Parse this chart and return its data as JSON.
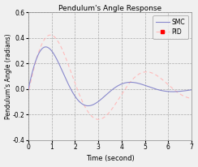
{
  "title": "Pendulum's Angle Response",
  "xlabel": "Time (second)",
  "ylabel": "Pendulum's Angle (radians)",
  "xlim": [
    0,
    7
  ],
  "ylim": [
    -0.4,
    0.6
  ],
  "yticks": [
    -0.4,
    -0.2,
    0.0,
    0.2,
    0.4,
    0.6
  ],
  "xticks": [
    0,
    1,
    2,
    3,
    4,
    5,
    6,
    7
  ],
  "smc_color": "#8888cc",
  "pid_color": "#ffbbbb",
  "pid_marker_color": "#ff0000",
  "grid_color": "#aaaaaa",
  "legend_labels": [
    "SMC",
    "PID"
  ],
  "figsize": [
    2.44,
    2.06
  ],
  "dpi": 100,
  "bg_color": "#f0f0f0"
}
